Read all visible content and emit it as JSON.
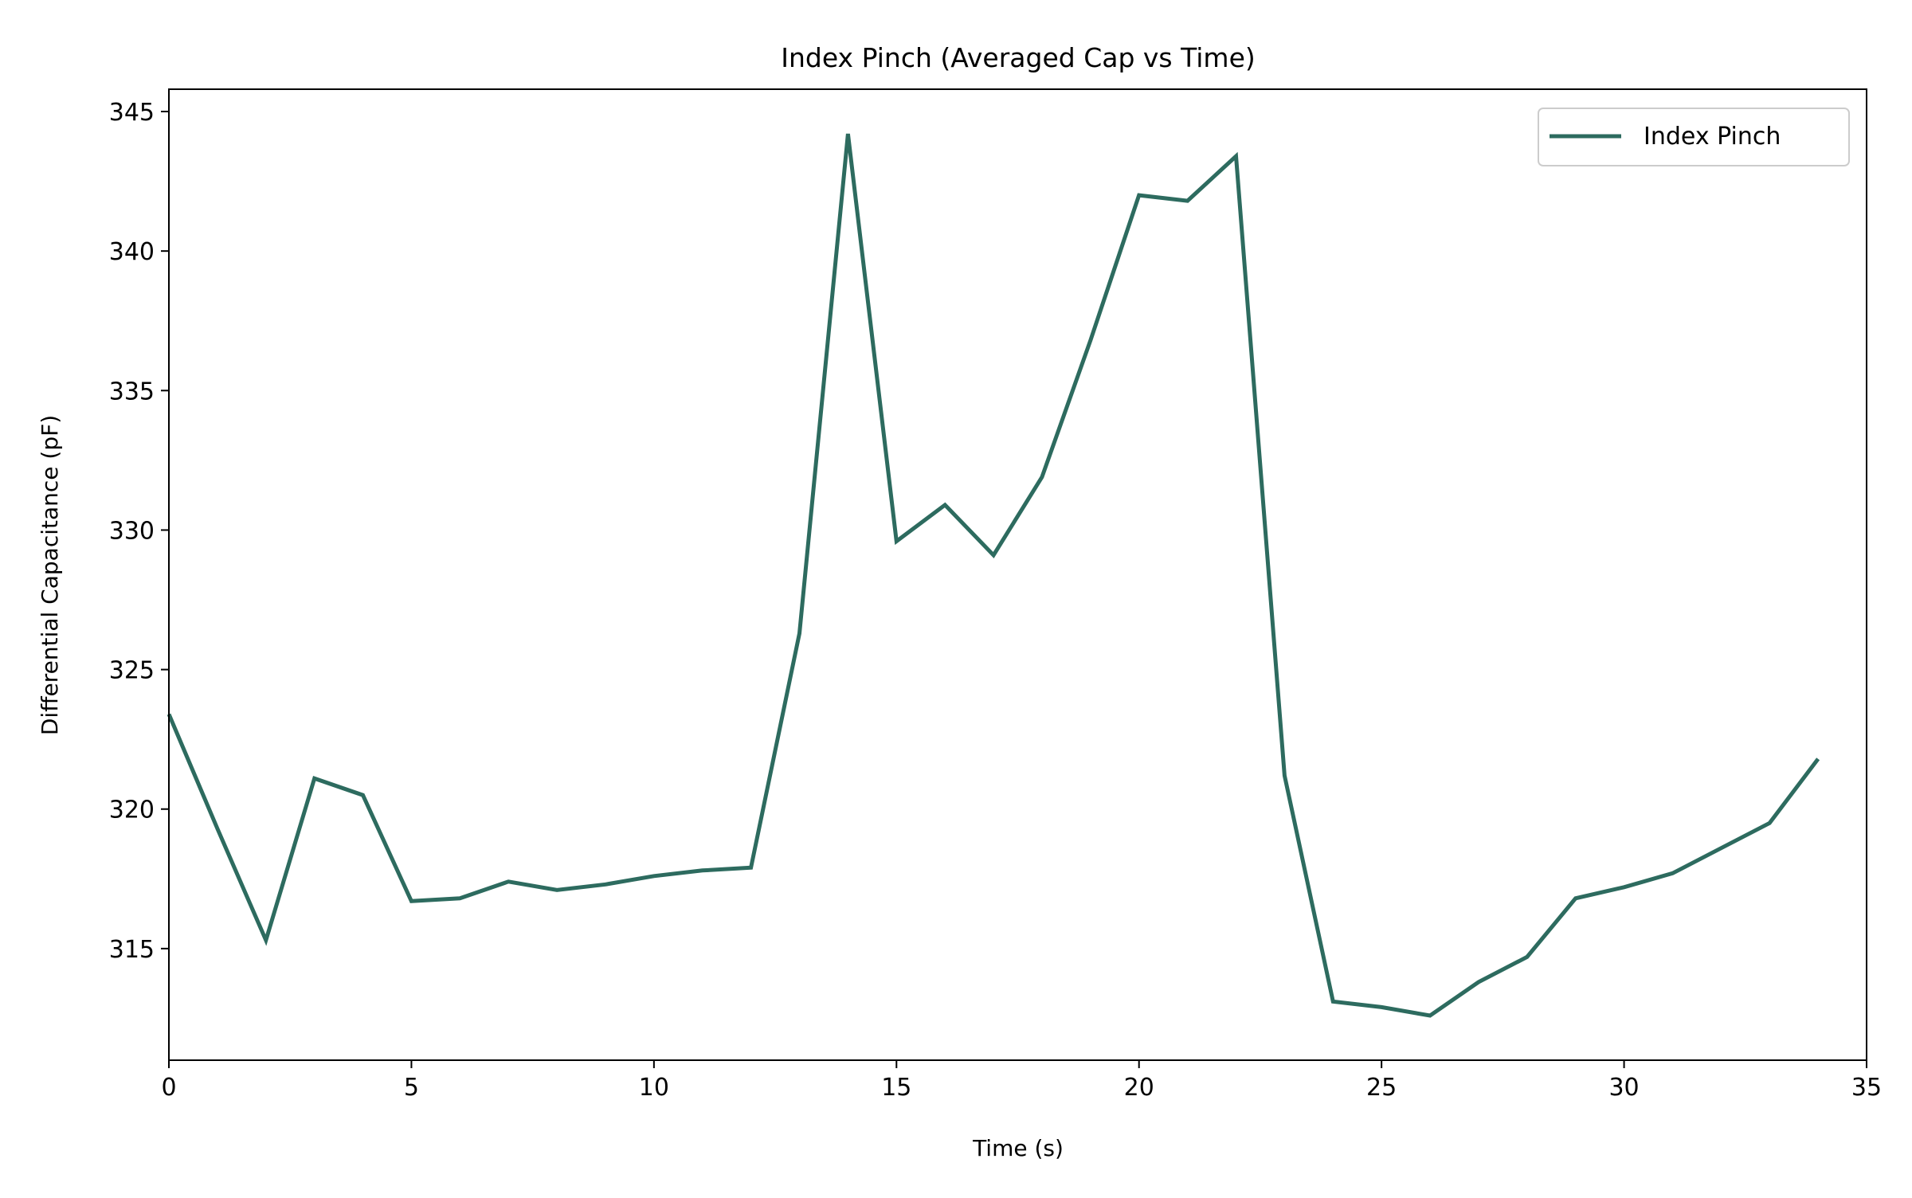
{
  "chart_data": {
    "type": "line",
    "title": "Index Pinch (Averaged Cap vs Time)",
    "xlabel": "Time (s)",
    "ylabel": "Differential Capacitance (pF)",
    "xlim": [
      0,
      35
    ],
    "ylim": [
      311,
      345.8
    ],
    "xticks": [
      0,
      5,
      10,
      15,
      20,
      25,
      30,
      35
    ],
    "yticks": [
      315,
      320,
      325,
      330,
      335,
      340,
      345
    ],
    "grid": false,
    "legend": {
      "position": "top-right"
    },
    "series": [
      {
        "name": "Index Pinch",
        "color": "#2d6b5f",
        "x": [
          0,
          1,
          2,
          3,
          4,
          5,
          6,
          7,
          8,
          9,
          10,
          11,
          12,
          13,
          14,
          15,
          16,
          17,
          18,
          19,
          20,
          21,
          22,
          23,
          24,
          25,
          26,
          27,
          28,
          29,
          30,
          31,
          32,
          33,
          34
        ],
        "y": [
          323.4,
          319.3,
          315.3,
          321.1,
          320.5,
          316.7,
          316.8,
          317.4,
          317.1,
          317.3,
          317.6,
          317.8,
          317.9,
          326.3,
          344.2,
          329.6,
          330.9,
          329.1,
          331.9,
          336.8,
          342.0,
          341.8,
          343.4,
          321.2,
          313.1,
          312.9,
          312.6,
          313.8,
          314.7,
          316.8,
          317.2,
          317.7,
          318.6,
          319.5,
          321.8
        ]
      }
    ]
  }
}
